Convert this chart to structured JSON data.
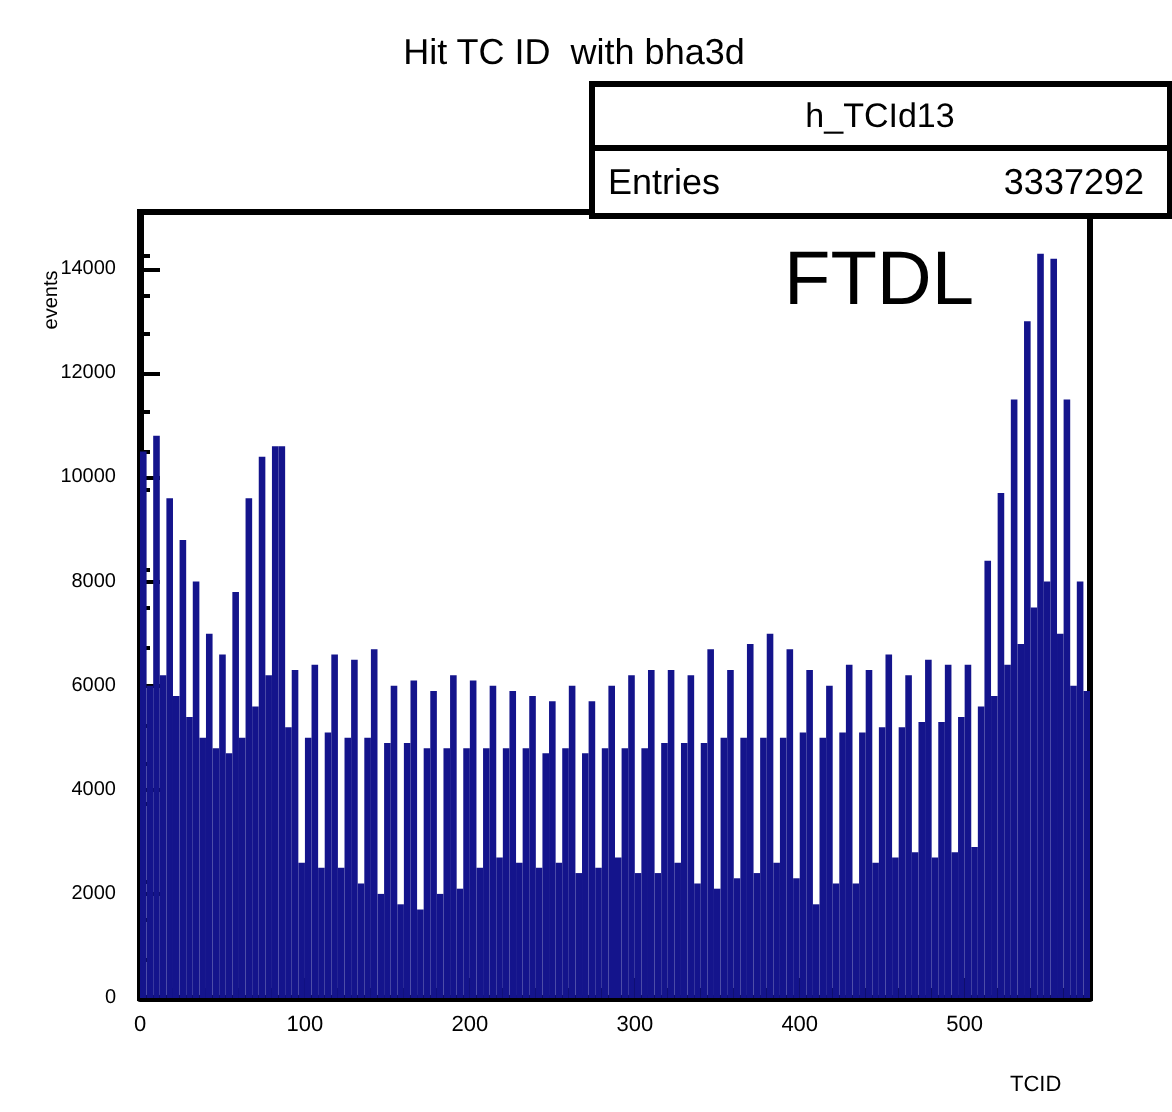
{
  "chart_data": {
    "type": "histogram",
    "title": "Hit TC ID  with bha3d",
    "xlabel": "TCID",
    "ylabel": "events",
    "annotations": [
      "h_TCId13",
      "Entries",
      "3337292",
      "FTDL"
    ],
    "color": "#14148c",
    "bins": [
      0,
      4,
      8,
      12,
      16,
      20,
      24,
      28,
      32,
      36,
      40,
      44,
      48,
      52,
      56,
      60,
      64,
      68,
      72,
      76,
      80,
      84,
      88,
      92,
      96,
      100,
      104,
      108,
      112,
      116,
      120,
      124,
      128,
      132,
      136,
      140,
      144,
      148,
      152,
      156,
      160,
      164,
      168,
      172,
      176,
      180,
      184,
      188,
      192,
      196,
      200,
      204,
      208,
      212,
      216,
      220,
      224,
      228,
      232,
      236,
      240,
      244,
      248,
      252,
      256,
      260,
      264,
      268,
      272,
      276,
      280,
      284,
      288,
      292,
      296,
      300,
      304,
      308,
      312,
      316,
      320,
      324,
      328,
      332,
      336,
      340,
      344,
      348,
      352,
      356,
      360,
      364,
      368,
      372,
      376,
      380,
      384,
      388,
      392,
      396,
      400,
      404,
      408,
      412,
      416,
      420,
      424,
      428,
      432,
      436,
      440,
      444,
      448,
      452,
      456,
      460,
      464,
      468,
      472,
      476,
      480,
      484,
      488,
      492,
      496,
      500,
      504,
      508,
      512,
      516,
      520,
      524,
      528,
      532,
      536,
      540,
      544,
      548,
      552,
      556,
      560,
      564,
      568,
      572,
      576
    ],
    "values": [
      10500,
      6000,
      10800,
      6200,
      9600,
      5800,
      8800,
      5400,
      8000,
      5000,
      7000,
      4800,
      6600,
      4700,
      7800,
      5000,
      9600,
      5600,
      10400,
      6200,
      10600,
      10600,
      5200,
      6300,
      2600,
      5000,
      6400,
      2500,
      5100,
      6600,
      2500,
      5000,
      6500,
      2200,
      5000,
      6700,
      2000,
      4900,
      6000,
      1800,
      4900,
      6100,
      1700,
      4800,
      5900,
      2000,
      4800,
      6200,
      2100,
      4800,
      6100,
      2500,
      4800,
      6000,
      2700,
      4800,
      5900,
      2600,
      4800,
      5800,
      2500,
      4700,
      5700,
      2600,
      4800,
      6000,
      2400,
      4700,
      5700,
      2500,
      4800,
      6000,
      2700,
      4800,
      6200,
      2400,
      4800,
      6300,
      2400,
      4900,
      6300,
      2600,
      4900,
      6200,
      2200,
      4900,
      6700,
      2100,
      5000,
      6300,
      2300,
      5000,
      6800,
      2400,
      5000,
      7000,
      2600,
      5000,
      6700,
      2300,
      5100,
      6300,
      1800,
      5000,
      6000,
      2200,
      5100,
      6400,
      2200,
      5100,
      6300,
      2600,
      5200,
      6600,
      2700,
      5200,
      6200,
      2800,
      5300,
      6500,
      2700,
      5300,
      6400,
      2800,
      5400,
      6400,
      2900,
      5600,
      8400,
      5800,
      9700,
      6400,
      11500,
      6800,
      13000,
      7500,
      14300,
      8000,
      14200,
      7000,
      11500,
      6000,
      8000,
      5900
    ],
    "xlim": [
      0,
      576
    ],
    "xticks": [
      0,
      100,
      200,
      300,
      400,
      500
    ],
    "ylim": [
      0,
      15100
    ],
    "yticks": [
      0,
      2000,
      4000,
      6000,
      8000,
      10000,
      12000,
      14000
    ],
    "grid": false
  }
}
